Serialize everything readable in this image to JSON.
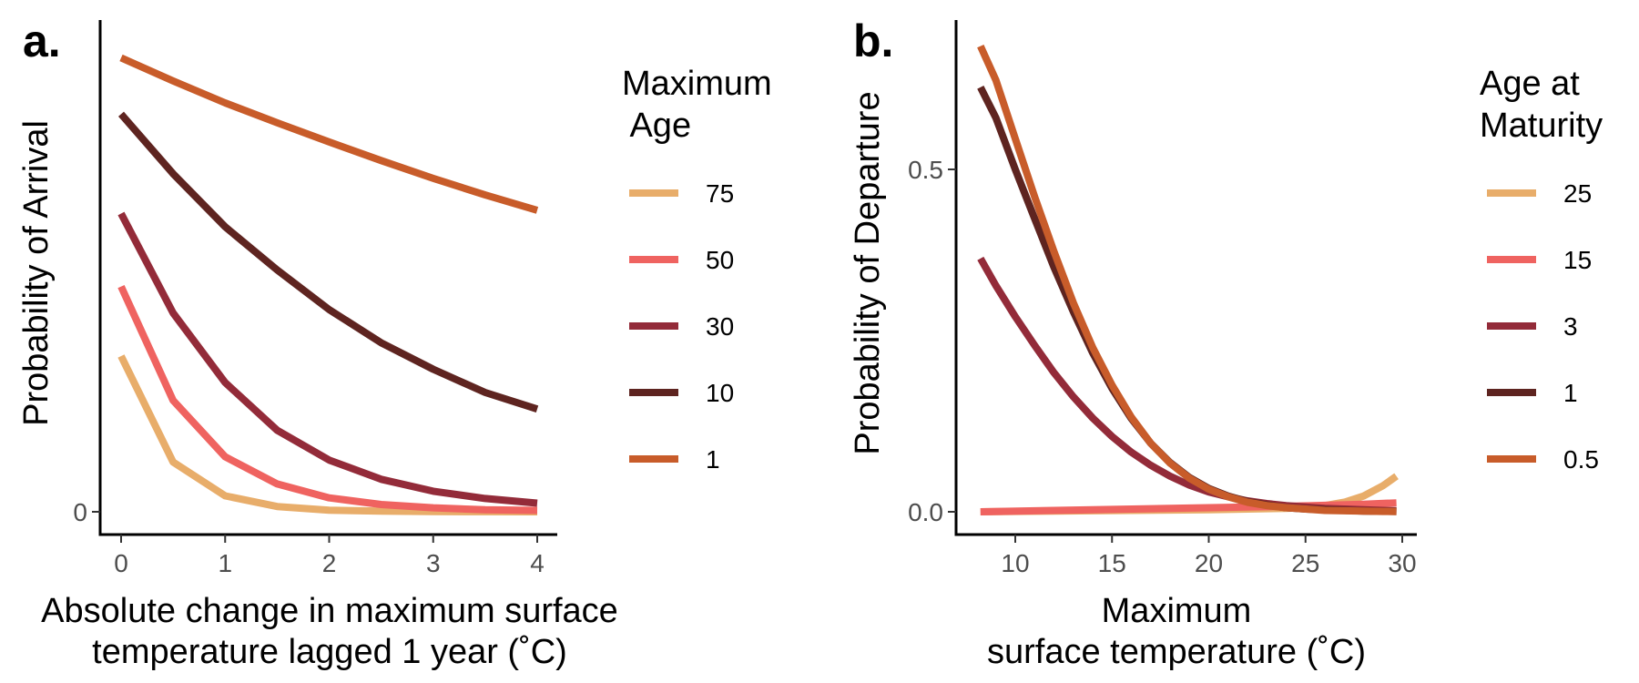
{
  "colors": {
    "light_orange": "#E8AD6A",
    "salmon": "#EF6360",
    "crimson": "#932B39",
    "dark_brown": "#5E2420",
    "burnt_orange": "#C85C2A"
  },
  "chart_data": [
    {
      "panel_label": "a.",
      "type": "line",
      "xlabel_lines": [
        "Absolute change in maximum surface",
        "temperature lagged 1 year (˚C)"
      ],
      "ylabel": "Probability of Arrival",
      "xlim": [
        0,
        4
      ],
      "ylim": [
        0,
        0.72
      ],
      "x_ticks": [
        {
          "value": 0,
          "label": "0"
        },
        {
          "value": 1,
          "label": "1"
        },
        {
          "value": 2,
          "label": "2"
        },
        {
          "value": 3,
          "label": "3"
        },
        {
          "value": 4,
          "label": "4"
        }
      ],
      "y_ticks": [
        {
          "value": 0,
          "label": "0"
        }
      ],
      "legend": {
        "title_lines": [
          "Maximum",
          " Age"
        ],
        "placement": "right",
        "entries": [
          "75",
          "50",
          "30",
          "10",
          "1"
        ]
      },
      "series": [
        {
          "name": "75",
          "color": "#E8AD6A",
          "x": [
            0,
            0.5,
            1,
            1.5,
            2,
            2.5,
            3,
            3.5,
            4
          ],
          "y": [
            0.235,
            0.075,
            0.024,
            0.008,
            0.0025,
            0.001,
            0.0003,
            0.0001,
            0.0
          ]
        },
        {
          "name": "50",
          "color": "#EF6360",
          "x": [
            0,
            0.5,
            1,
            1.5,
            2,
            2.5,
            3,
            3.5,
            4
          ],
          "y": [
            0.34,
            0.168,
            0.083,
            0.042,
            0.021,
            0.011,
            0.006,
            0.003,
            0.002
          ]
        },
        {
          "name": "30",
          "color": "#932B39",
          "x": [
            0,
            0.5,
            1,
            1.5,
            2,
            2.5,
            3,
            3.5,
            4
          ],
          "y": [
            0.45,
            0.3,
            0.195,
            0.123,
            0.078,
            0.049,
            0.031,
            0.02,
            0.013
          ]
        },
        {
          "name": "10",
          "color": "#5E2420",
          "x": [
            0,
            0.5,
            1,
            1.5,
            2,
            2.5,
            3,
            3.5,
            4
          ],
          "y": [
            0.6,
            0.51,
            0.43,
            0.365,
            0.305,
            0.255,
            0.215,
            0.18,
            0.155
          ]
        },
        {
          "name": "1",
          "color": "#C85C2A",
          "x": [
            0,
            0.5,
            1,
            1.5,
            2,
            2.5,
            3,
            3.5,
            4
          ],
          "y": [
            0.685,
            0.65,
            0.617,
            0.587,
            0.558,
            0.53,
            0.503,
            0.478,
            0.455
          ]
        }
      ]
    },
    {
      "panel_label": "b.",
      "type": "line",
      "xlabel_lines": [
        "Maximum",
        "surface temperature (˚C)"
      ],
      "ylabel": "Probability of Departure",
      "xlim": [
        7.1,
        30.7
      ],
      "ylim": [
        -0.035,
        0.72
      ],
      "x_ticks": [
        {
          "value": 10,
          "label": "10"
        },
        {
          "value": 15,
          "label": "15"
        },
        {
          "value": 20,
          "label": "20"
        },
        {
          "value": 25,
          "label": "25"
        },
        {
          "value": 30,
          "label": "30"
        }
      ],
      "y_ticks": [
        {
          "value": 0,
          "label": "0.0"
        },
        {
          "value": 0.5,
          "label": "0.5"
        }
      ],
      "legend": {
        "title_lines": [
          "Age at",
          "Maturity"
        ],
        "placement": "right",
        "entries": [
          "25",
          "15",
          "3",
          "1",
          "0.5"
        ]
      },
      "series": [
        {
          "name": "25",
          "color": "#E8AD6A",
          "x": [
            8.2,
            10,
            12,
            14,
            16,
            18,
            20,
            22,
            24,
            25,
            26,
            27,
            28,
            29,
            29.7
          ],
          "y": [
            0.0,
            0.0005,
            0.001,
            0.0015,
            0.002,
            0.0025,
            0.003,
            0.004,
            0.005,
            0.006,
            0.009,
            0.014,
            0.023,
            0.038,
            0.052
          ]
        },
        {
          "name": "15",
          "color": "#EF6360",
          "x": [
            8.2,
            12,
            16,
            20,
            24,
            28,
            29.7
          ],
          "y": [
            0.0,
            0.002,
            0.004,
            0.006,
            0.008,
            0.011,
            0.013
          ]
        },
        {
          "name": "3",
          "color": "#932B39",
          "x": [
            8.2,
            9,
            10,
            11,
            12,
            13,
            14,
            15,
            16,
            17,
            18,
            19,
            20,
            21,
            22,
            23,
            24,
            25,
            26,
            27,
            28,
            29,
            29.7
          ],
          "y": [
            0.37,
            0.33,
            0.285,
            0.243,
            0.203,
            0.168,
            0.137,
            0.11,
            0.087,
            0.068,
            0.052,
            0.039,
            0.029,
            0.022,
            0.016,
            0.012,
            0.009,
            0.007,
            0.005,
            0.004,
            0.003,
            0.002,
            0.0015
          ]
        },
        {
          "name": "1",
          "color": "#5E2420",
          "x": [
            8.2,
            9,
            10,
            11,
            12,
            13,
            14,
            15,
            16,
            17,
            18,
            19,
            20,
            21,
            22,
            23,
            24,
            25,
            26,
            27,
            28,
            29,
            29.7
          ],
          "y": [
            0.62,
            0.575,
            0.5,
            0.428,
            0.357,
            0.292,
            0.232,
            0.18,
            0.136,
            0.1,
            0.072,
            0.05,
            0.034,
            0.023,
            0.015,
            0.01,
            0.006,
            0.004,
            0.003,
            0.002,
            0.001,
            0.0007,
            0.0005
          ]
        },
        {
          "name": "0.5",
          "color": "#C85C2A",
          "x": [
            8.2,
            9,
            10,
            11,
            12,
            13,
            14,
            15,
            16,
            17,
            18,
            19,
            20,
            21,
            22,
            23,
            24,
            25,
            26,
            27,
            28,
            29,
            29.7
          ],
          "y": [
            0.68,
            0.63,
            0.545,
            0.46,
            0.38,
            0.305,
            0.24,
            0.185,
            0.138,
            0.1,
            0.071,
            0.049,
            0.033,
            0.022,
            0.014,
            0.009,
            0.006,
            0.004,
            0.002,
            0.0015,
            0.001,
            0.0005,
            0.0003
          ]
        }
      ]
    }
  ]
}
